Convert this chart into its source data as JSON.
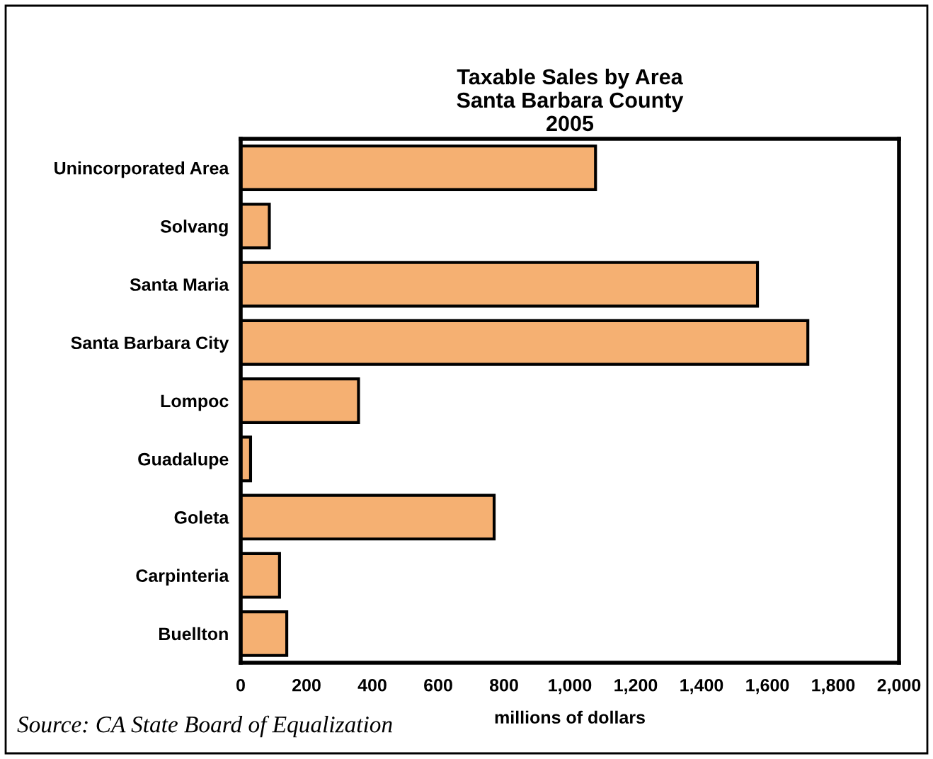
{
  "chart_data": {
    "type": "bar",
    "orientation": "horizontal",
    "title": "Taxable Sales by Area\nSanta Barbara County\n2005",
    "xlabel": "millions of dollars",
    "categories": [
      "Unincorporated Area",
      "Solvang",
      "Santa Maria",
      "Santa Barbara City",
      "Lompoc",
      "Guadalupe",
      "Goleta",
      "Carpinteria",
      "Buellton"
    ],
    "values": [
      1078,
      87,
      1570,
      1723,
      358,
      30,
      770,
      118,
      140
    ],
    "color": "#f5b072",
    "xlim": [
      0,
      2000
    ],
    "xticks": [
      {
        "value": 0,
        "label": "0"
      },
      {
        "value": 200,
        "label": "200"
      },
      {
        "value": 400,
        "label": "400"
      },
      {
        "value": 600,
        "label": "600"
      },
      {
        "value": 800,
        "label": "800"
      },
      {
        "value": 1000,
        "label": "1,000"
      },
      {
        "value": 1200,
        "label": "1,200"
      },
      {
        "value": 1400,
        "label": "1,400"
      },
      {
        "value": 1600,
        "label": "1,600"
      },
      {
        "value": 1800,
        "label": "1,800"
      },
      {
        "value": 2000,
        "label": "2,000"
      }
    ],
    "grid": false,
    "legend": false,
    "annotations": [
      "Source: CA State Board of Equalization"
    ]
  }
}
